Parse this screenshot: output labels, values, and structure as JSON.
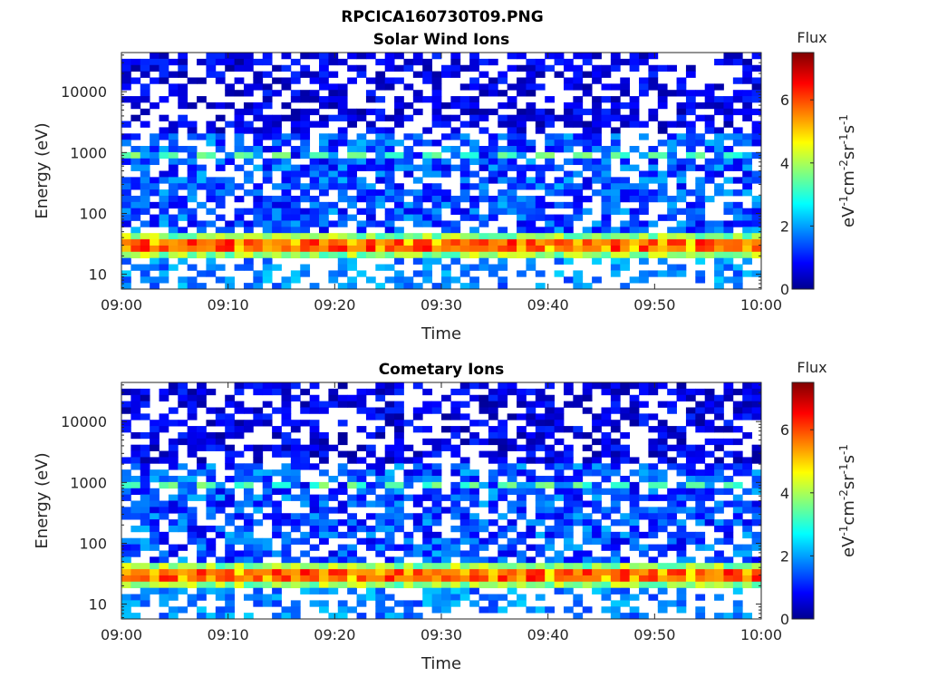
{
  "figure_title": "RPCICA160730T09.PNG",
  "chart_data": [
    {
      "type": "heatmap",
      "title": "Solar Wind Ions",
      "xlabel": "Time",
      "ylabel": "Energy (eV)",
      "x_ticks": [
        "09:00",
        "09:10",
        "09:20",
        "09:30",
        "09:40",
        "09:50",
        "10:00"
      ],
      "xlim": [
        "09:00",
        "10:00"
      ],
      "y_scale": "log",
      "y_ticks": [
        "10",
        "100",
        "1000",
        "10000"
      ],
      "ylim": [
        5.7,
        44000
      ],
      "colorbar": {
        "title": "Flux",
        "label": "eV-1cm-2sr-1s-1",
        "ticks": [
          "0",
          "2",
          "4",
          "6"
        ],
        "range": [
          0,
          7.5
        ],
        "colormap": "jet"
      },
      "features": [
        {
          "description": "strong band",
          "energy_ev": 30,
          "flux": 6
        },
        {
          "description": "periodic band",
          "energy_ev": 850,
          "flux": 3.5
        }
      ]
    },
    {
      "type": "heatmap",
      "title": "Cometary Ions",
      "xlabel": "Time",
      "ylabel": "Energy (eV)",
      "x_ticks": [
        "09:00",
        "09:10",
        "09:20",
        "09:30",
        "09:40",
        "09:50",
        "10:00"
      ],
      "xlim": [
        "09:00",
        "10:00"
      ],
      "y_scale": "log",
      "y_ticks": [
        "10",
        "100",
        "1000",
        "10000"
      ],
      "ylim": [
        5.7,
        44000
      ],
      "colorbar": {
        "title": "Flux",
        "label": "eV-1cm-2sr-1s-1",
        "ticks": [
          "0",
          "2",
          "4",
          "6"
        ],
        "range": [
          0,
          7.5
        ],
        "colormap": "jet"
      },
      "features": [
        {
          "description": "strong band",
          "energy_ev": 30,
          "flux": 6
        },
        {
          "description": "periodic band",
          "energy_ev": 850,
          "flux": 3.5
        }
      ]
    }
  ]
}
